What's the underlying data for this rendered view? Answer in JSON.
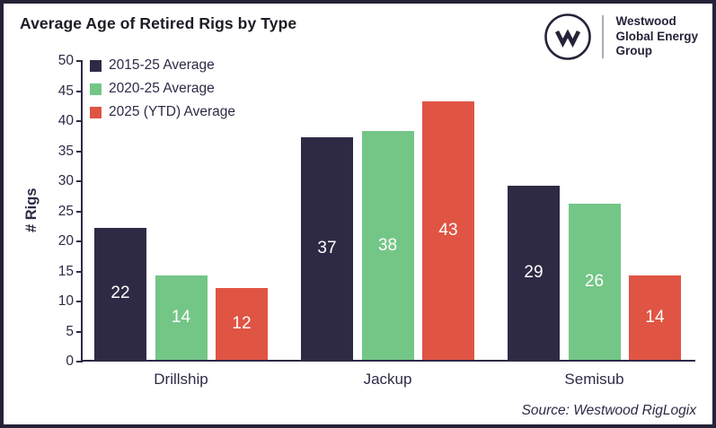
{
  "header": {
    "title": "Average Age of Retired Rigs by Type",
    "logo": {
      "monogram": "w",
      "lines": [
        "Westwood",
        "Global Energy",
        "Group"
      ]
    }
  },
  "chart_data": {
    "type": "bar",
    "title": "Average Age of Retired Rigs by Type",
    "categories": [
      "Drillship",
      "Jackup",
      "Semisub"
    ],
    "series": [
      {
        "name": "2015-25 Average",
        "color": "#2e2a45",
        "values": [
          22,
          37,
          29
        ]
      },
      {
        "name": "2020-25 Average",
        "color": "#74c687",
        "values": [
          14,
          38,
          26
        ]
      },
      {
        "name": "2025 (YTD) Average",
        "color": "#e05443",
        "values": [
          12,
          43,
          14
        ]
      }
    ],
    "xlabel": "",
    "ylabel": "# Rigs",
    "ylim": [
      0,
      50
    ],
    "ytick_step": 5,
    "grid": false,
    "legend_position": "top-left",
    "value_labels": "white, centered inside bars"
  },
  "footer": {
    "source": "Source: Westwood RigLogix"
  },
  "colors": {
    "frame": "#262338",
    "axis": "#2e2a45",
    "navy": "#2e2a45",
    "green": "#74c687",
    "red": "#e05443",
    "title_text": "#1c1c26"
  }
}
